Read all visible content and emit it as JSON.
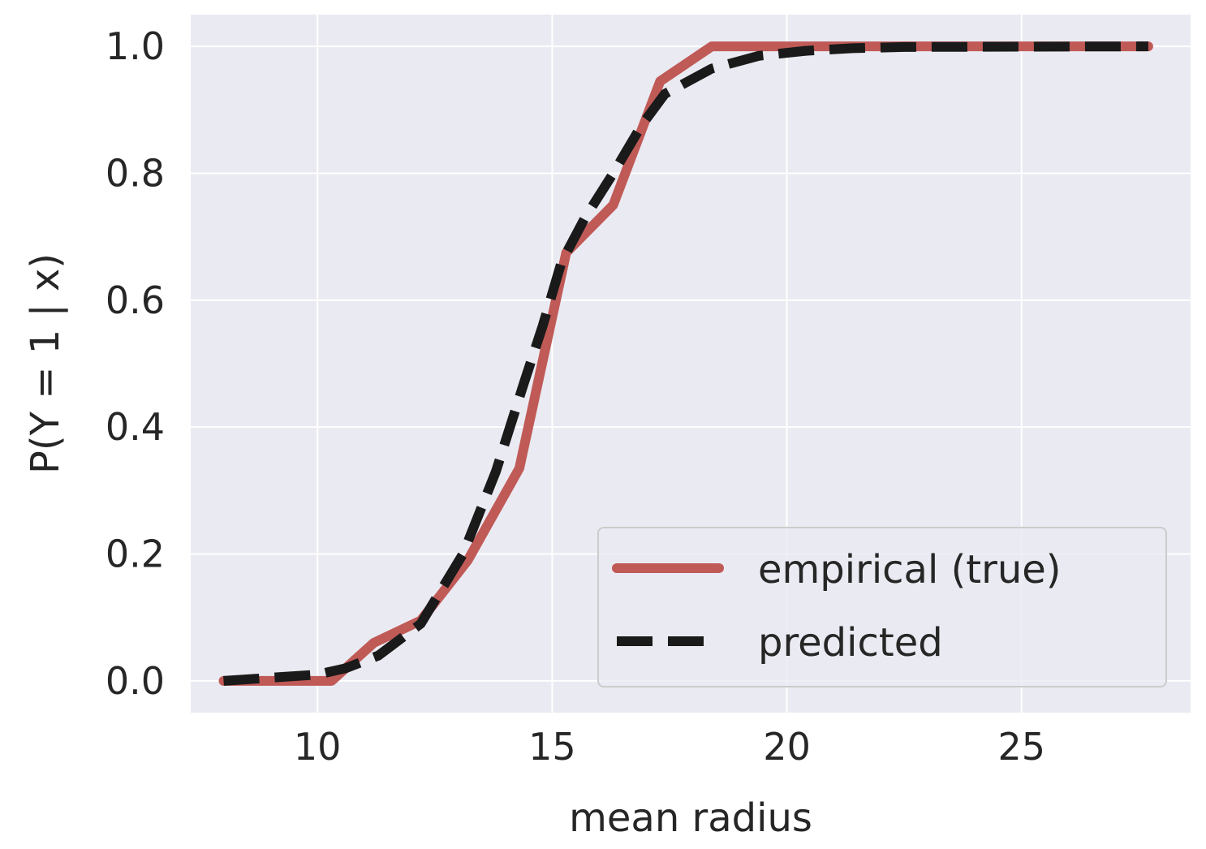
{
  "chart_data": {
    "type": "line",
    "xlabel": "mean radius",
    "ylabel": "P(Y = 1 | x)",
    "xlim": [
      7.3,
      28.6
    ],
    "ylim": [
      -0.05,
      1.05
    ],
    "xticks": [
      10,
      15,
      20,
      25
    ],
    "xtick_labels": [
      "10",
      "15",
      "20",
      "25"
    ],
    "yticks": [
      0.0,
      0.2,
      0.4,
      0.6,
      0.8,
      1.0
    ],
    "ytick_labels": [
      "0.0",
      "0.2",
      "0.4",
      "0.6",
      "0.8",
      "1.0"
    ],
    "grid": true,
    "legend_position": "lower-right",
    "background_color": "#eaeaf2",
    "grid_color": "#ffffff",
    "series": [
      {
        "name": "empirical (true)",
        "color": "#c05a57",
        "style": "solid",
        "x": [
          8.0,
          10.3,
          11.2,
          12.2,
          13.2,
          14.3,
          15.3,
          16.3,
          17.3,
          18.4,
          19.4,
          20.5,
          27.7
        ],
        "y": [
          0.0,
          0.0,
          0.06,
          0.095,
          0.19,
          0.335,
          0.675,
          0.75,
          0.945,
          1.0,
          1.0,
          1.0,
          1.0
        ]
      },
      {
        "name": "predicted",
        "color": "#1a1a1a",
        "style": "dashed",
        "x": [
          8.0,
          9.0,
          10.0,
          10.6,
          11.3,
          12.2,
          13.1,
          13.8,
          14.4,
          14.8,
          15.2,
          15.7,
          16.3,
          16.9,
          17.4,
          18.4,
          19.4,
          20.4,
          21.4,
          22.5,
          27.7
        ],
        "y": [
          0.0,
          0.005,
          0.01,
          0.02,
          0.04,
          0.09,
          0.2,
          0.33,
          0.47,
          0.56,
          0.66,
          0.73,
          0.8,
          0.875,
          0.925,
          0.965,
          0.985,
          0.993,
          0.997,
          0.999,
          1.0
        ]
      }
    ]
  }
}
